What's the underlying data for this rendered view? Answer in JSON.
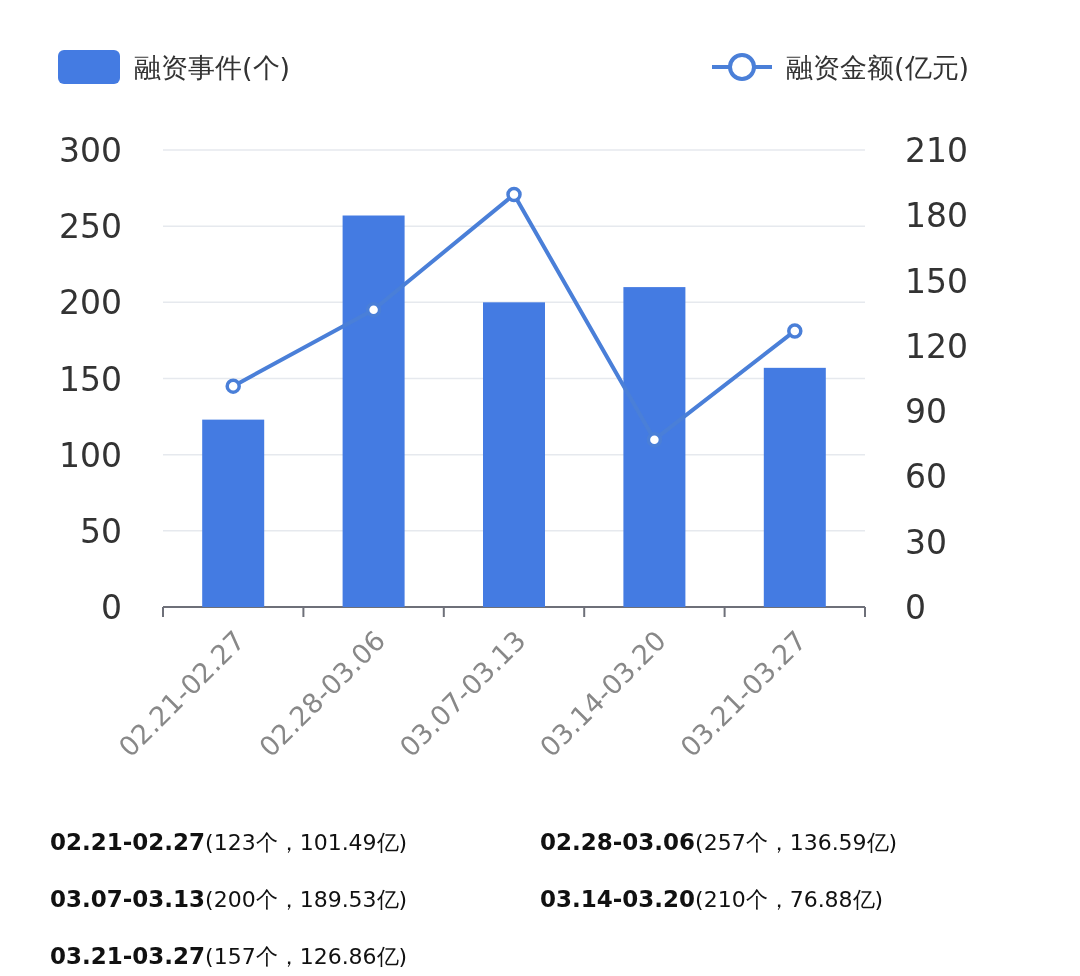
{
  "chart_data": {
    "type": "bar",
    "categories": [
      "02.21-02.27",
      "02.28-03.06",
      "03.07-03.13",
      "03.14-03.20",
      "03.21-03.27"
    ],
    "series": [
      {
        "name": "融资事件(个)",
        "color": "#447be2",
        "values": [
          123,
          257,
          200,
          210,
          157
        ]
      },
      {
        "name": "融资金额(亿元)",
        "type": "line",
        "axis": "y2",
        "color": "#4a7fd8",
        "values": [
          101.49,
          136.59,
          189.53,
          76.88,
          126.86
        ]
      }
    ],
    "ylim": [
      0,
      300
    ],
    "yticks": [
      0,
      50,
      100,
      150,
      200,
      250,
      300
    ],
    "y2lim": [
      0,
      210
    ],
    "y2ticks": [
      0,
      30,
      60,
      90,
      120,
      150,
      180,
      210
    ],
    "grid": "y",
    "legend": "top",
    "marker": "circle",
    "annotations": [
      "02.21-02.27(123个，101.49亿)",
      "02.28-03.06(257个，136.59亿)",
      "03.07-03.13(200个，189.53亿)",
      "03.14-03.20(210个，76.88亿)",
      "03.21-03.27(157个，126.86亿)"
    ]
  }
}
